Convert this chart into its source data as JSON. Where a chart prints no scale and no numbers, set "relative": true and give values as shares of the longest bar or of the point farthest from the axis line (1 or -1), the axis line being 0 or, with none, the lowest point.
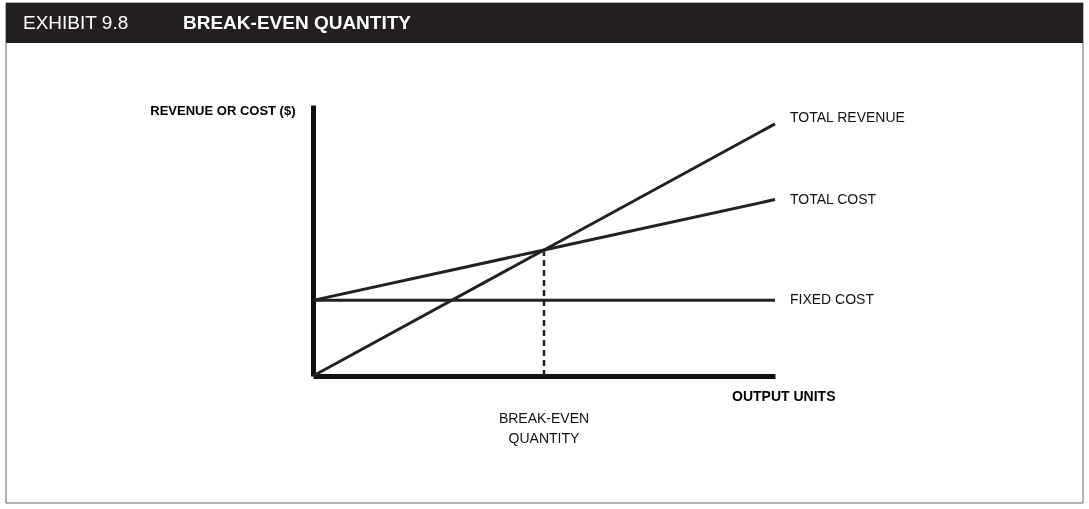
{
  "chart_data": {
    "type": "line",
    "title": "BREAK-EVEN QUANTITY",
    "subtitle": "EXHIBIT 9.8",
    "xlabel": "OUTPUT UNITS",
    "ylabel": "REVENUE OR COST ($)",
    "relative": true,
    "grid": false,
    "legend": false,
    "categories": [
      null,
      null,
      null
    ],
    "series": [
      {
        "name": "TOTAL REVENUE",
        "color": "#222222",
        "values": [
          0,
          0.5,
          1
        ]
      },
      {
        "name": "TOTAL COST",
        "color": "#222222",
        "values": [
          0.3,
          0.5,
          0.7
        ]
      },
      {
        "name": "FIXED COST",
        "color": "#222222",
        "values": [
          0.3,
          0.3,
          0.3
        ]
      }
    ],
    "annotations": [
      "BREAK-EVEN QUANTITY"
    ]
  }
}
